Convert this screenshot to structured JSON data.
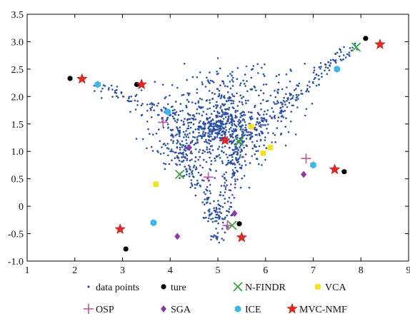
{
  "chart_data": {
    "type": "scatter",
    "title": "",
    "xlabel": "",
    "ylabel": "",
    "xlim": [
      1,
      9
    ],
    "ylim": [
      -1.0,
      3.5
    ],
    "x_ticks": [
      "1",
      "2",
      "3",
      "4",
      "5",
      "6",
      "7",
      "8",
      "9"
    ],
    "y_ticks": [
      "3.5",
      "3.0",
      "2.5",
      "2.0",
      "1.5",
      "1.0",
      "0.5",
      "0",
      "-0.5",
      "-1.0"
    ],
    "grid": false,
    "legend_position": "bottom",
    "data_cloud": {
      "description_points": "simplex-shaped cloud of mixed pixels",
      "vertices": [
        [
          2.5,
          2.2
        ],
        [
          7.8,
          2.9
        ],
        [
          5.0,
          -0.6
        ]
      ],
      "inner_vertices": [
        [
          3.9,
          1.75
        ],
        [
          5.45,
          1.2
        ],
        [
          4.95,
          -0.25
        ]
      ],
      "count": 1400,
      "color": "#2b4fa8"
    },
    "series": [
      {
        "name": "data points",
        "marker": "dot",
        "color": "#2b4fa8",
        "points": []
      },
      {
        "name": "ture",
        "marker": "circle",
        "color": "#000000",
        "points": [
          [
            1.9,
            2.33
          ],
          [
            3.3,
            2.22
          ],
          [
            8.1,
            3.06
          ],
          [
            5.45,
            -0.32
          ],
          [
            3.07,
            -0.78
          ],
          [
            7.65,
            0.63
          ]
        ]
      },
      {
        "name": "N-FINDR",
        "marker": "x",
        "color": "#3aa63a",
        "points": [
          [
            5.45,
            1.18
          ],
          [
            4.2,
            0.58
          ],
          [
            7.9,
            2.9
          ],
          [
            5.3,
            -0.35
          ]
        ]
      },
      {
        "name": "VCA",
        "marker": "square",
        "color": "#f2e31a",
        "points": [
          [
            5.7,
            1.45
          ],
          [
            6.1,
            1.07
          ],
          [
            5.95,
            0.97
          ],
          [
            3.7,
            0.4
          ]
        ]
      },
      {
        "name": "OSP",
        "marker": "plus",
        "color": "#c2529d",
        "points": [
          [
            4.8,
            0.53
          ],
          [
            6.85,
            0.87
          ],
          [
            3.85,
            1.53
          ],
          [
            5.2,
            -0.35
          ]
        ]
      },
      {
        "name": "SGA",
        "marker": "diamond",
        "color": "#8e3aa0",
        "points": [
          [
            6.8,
            0.58
          ],
          [
            4.4,
            1.07
          ],
          [
            5.35,
            -0.13
          ],
          [
            4.15,
            -0.55
          ]
        ]
      },
      {
        "name": "ICE",
        "marker": "hexagon",
        "color": "#3fb6e6",
        "points": [
          [
            3.95,
            1.72
          ],
          [
            2.48,
            2.22
          ],
          [
            7.5,
            2.5
          ],
          [
            7.0,
            0.75
          ],
          [
            3.65,
            -0.3
          ]
        ]
      },
      {
        "name": "MVC-NMF",
        "marker": "star",
        "color": "#e8261e",
        "points": [
          [
            2.15,
            2.32
          ],
          [
            3.4,
            2.22
          ],
          [
            8.4,
            2.95
          ],
          [
            5.15,
            1.2
          ],
          [
            7.45,
            0.67
          ],
          [
            5.5,
            -0.57
          ],
          [
            2.95,
            -0.42
          ]
        ]
      }
    ]
  }
}
